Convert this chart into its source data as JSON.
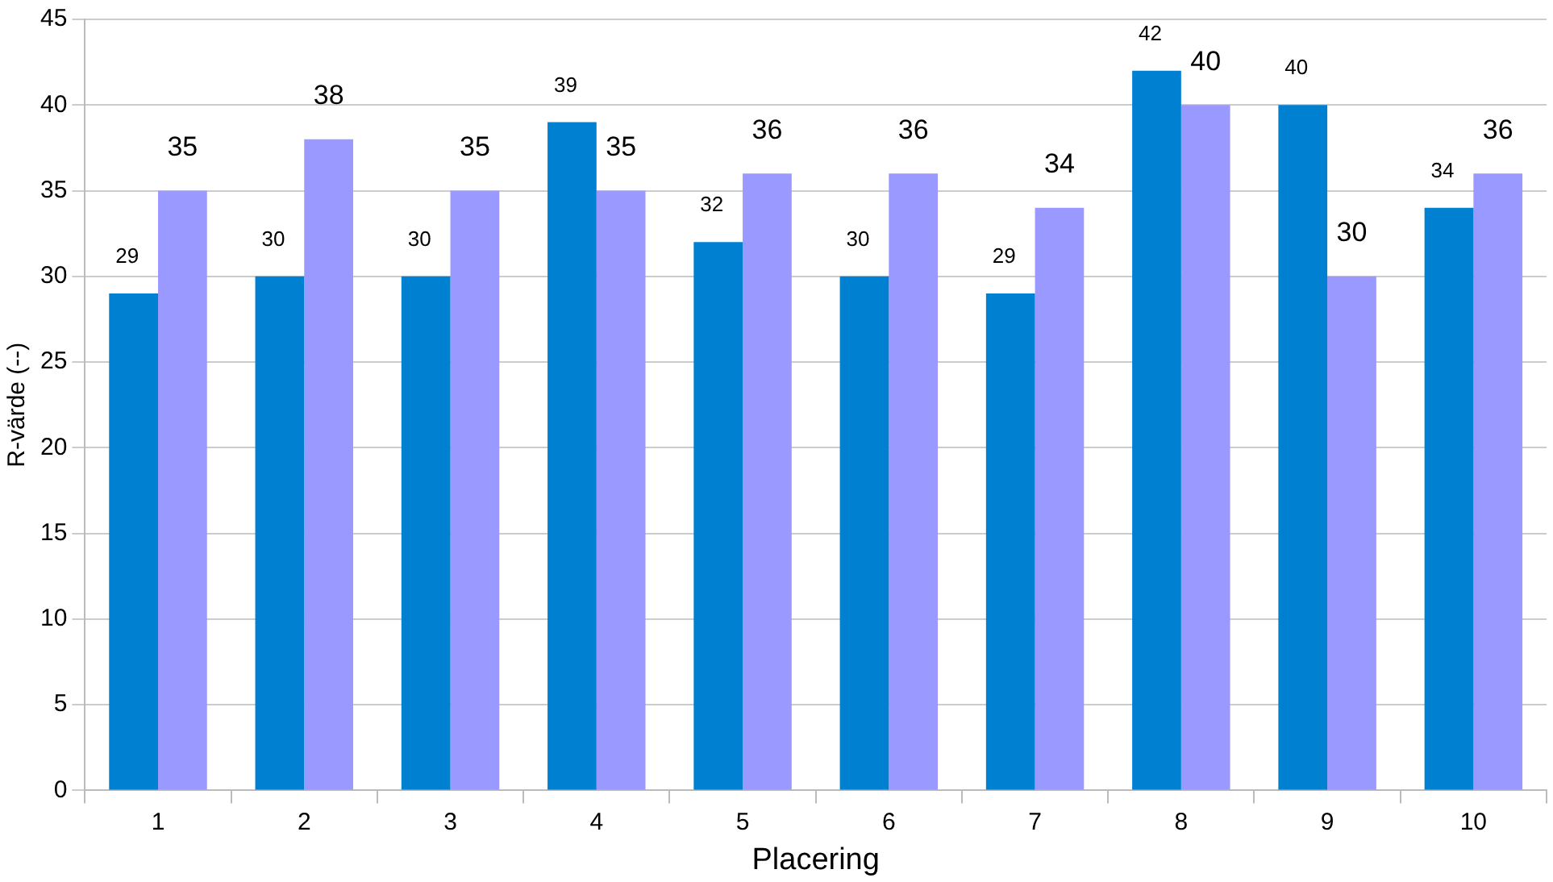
{
  "chart_data": {
    "type": "bar",
    "xlabel": "Placering",
    "ylabel": "R-värde (--)",
    "categories": [
      "1",
      "2",
      "3",
      "4",
      "5",
      "6",
      "7",
      "8",
      "9",
      "10"
    ],
    "series": [
      {
        "color": "#0080d0",
        "values": [
          29,
          30,
          30,
          39,
          32,
          30,
          29,
          42,
          40,
          34
        ]
      },
      {
        "color": "#9999ff",
        "values": [
          35,
          38,
          35,
          35,
          36,
          36,
          34,
          40,
          30,
          36
        ]
      }
    ],
    "ylim": [
      0,
      45
    ],
    "yticks": [
      0,
      5,
      10,
      15,
      20,
      25,
      30,
      35,
      40,
      45
    ],
    "grid": "y",
    "legend": false,
    "data_labels": true
  }
}
